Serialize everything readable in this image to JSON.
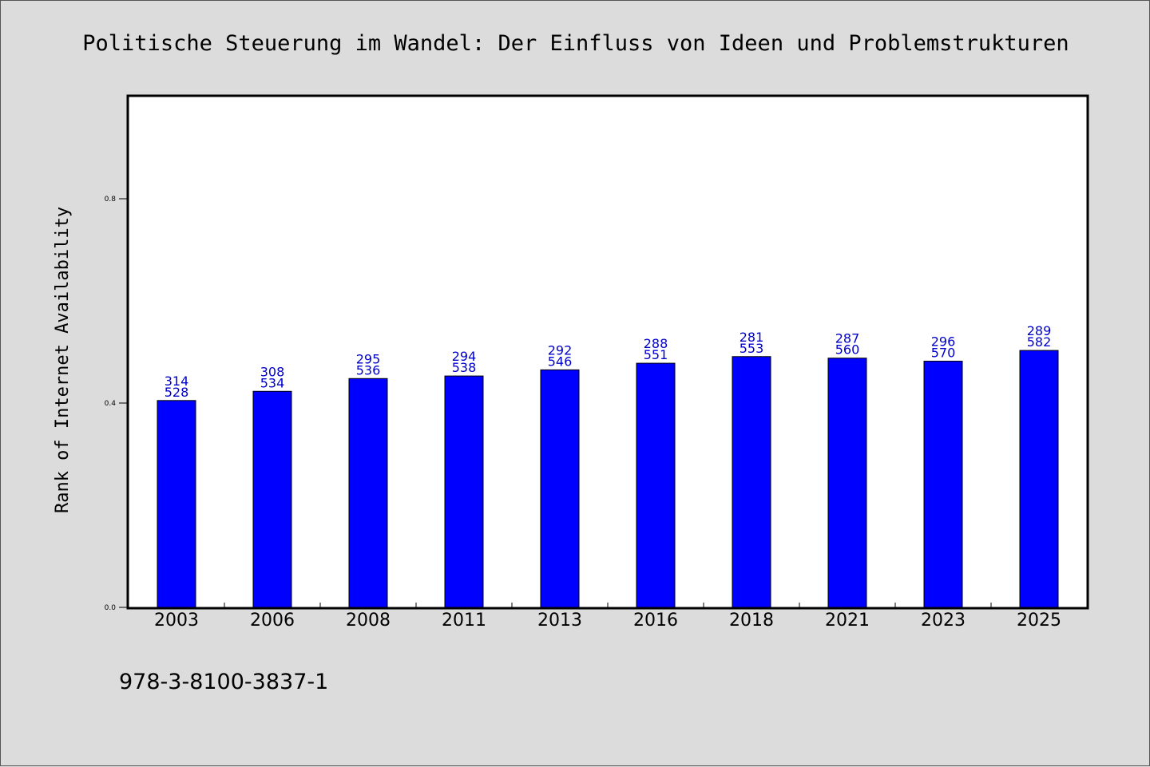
{
  "chart_data": {
    "type": "bar",
    "title": "Politische Steuerung im Wandel: Der Einfluss von Ideen und Problemstrukturen",
    "ylabel": "Rank of Internet Availability",
    "xlabel": "",
    "ylim": [
      0,
      1.0
    ],
    "yticks": [
      0.0,
      0.4,
      0.8
    ],
    "ytick_labels": [
      "0.0",
      "0.4",
      "0.8"
    ],
    "categories": [
      "2003",
      "2006",
      "2008",
      "2011",
      "2013",
      "2016",
      "2018",
      "2021",
      "2023",
      "2025"
    ],
    "values": [
      0.405,
      0.423,
      0.448,
      0.453,
      0.465,
      0.478,
      0.491,
      0.488,
      0.482,
      0.503
    ],
    "data_labels": [
      {
        "top": "314",
        "bottom": "528"
      },
      {
        "top": "308",
        "bottom": "534"
      },
      {
        "top": "295",
        "bottom": "536"
      },
      {
        "top": "294",
        "bottom": "538"
      },
      {
        "top": "292",
        "bottom": "546"
      },
      {
        "top": "288",
        "bottom": "551"
      },
      {
        "top": "281",
        "bottom": "553"
      },
      {
        "top": "287",
        "bottom": "560"
      },
      {
        "top": "296",
        "bottom": "570"
      },
      {
        "top": "289",
        "bottom": "582"
      }
    ],
    "bar_color": "#0000ff",
    "label_color": "#0000cc",
    "grid": false,
    "legend": "none"
  },
  "footer": {
    "isbn": "978-3-8100-3837-1"
  },
  "colors": {
    "background": "#dcdcdc",
    "plot_background": "#ffffff"
  }
}
